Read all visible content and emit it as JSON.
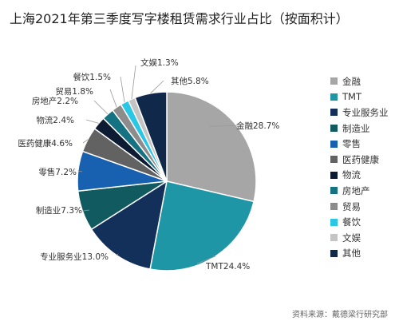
{
  "chart_data": {
    "type": "pie",
    "title": "上海2021年第三季度写字楼租赁需求行业占比（按面积计）",
    "source": "资料来源：戴德梁行研究部",
    "slices": [
      {
        "name": "金融",
        "value": 28.7,
        "label": "金融28.7%",
        "color": "#a6a6a6"
      },
      {
        "name": "TMT",
        "value": 24.4,
        "label": "TMT24.4%",
        "color": "#1f96a6"
      },
      {
        "name": "专业服务业",
        "value": 13.0,
        "label": "专业服务业13.0%",
        "color": "#13305a"
      },
      {
        "name": "制造业",
        "value": 7.3,
        "label": "制造业7.3%",
        "color": "#115a60"
      },
      {
        "name": "零售",
        "value": 7.2,
        "label": "零售7.2%",
        "color": "#1860b0"
      },
      {
        "name": "医药健康",
        "value": 4.6,
        "label": "医药健康4.6%",
        "color": "#626262"
      },
      {
        "name": "物流",
        "value": 2.4,
        "label": "物流2.4%",
        "color": "#0d1c33"
      },
      {
        "name": "房地产",
        "value": 2.2,
        "label": "房地产2.2%",
        "color": "#157282"
      },
      {
        "name": "贸易",
        "value": 1.8,
        "label": "贸易1.8%",
        "color": "#8c8c8c"
      },
      {
        "name": "餐饮",
        "value": 1.5,
        "label": "餐饮1.5%",
        "color": "#2ac6e6"
      },
      {
        "name": "文娱",
        "value": 1.3,
        "label": "文娱1.3%",
        "color": "#c4c4c4"
      },
      {
        "name": "其他",
        "value": 5.8,
        "label": "其他5.8%",
        "color": "#10284a"
      }
    ],
    "legend_position": "right"
  }
}
